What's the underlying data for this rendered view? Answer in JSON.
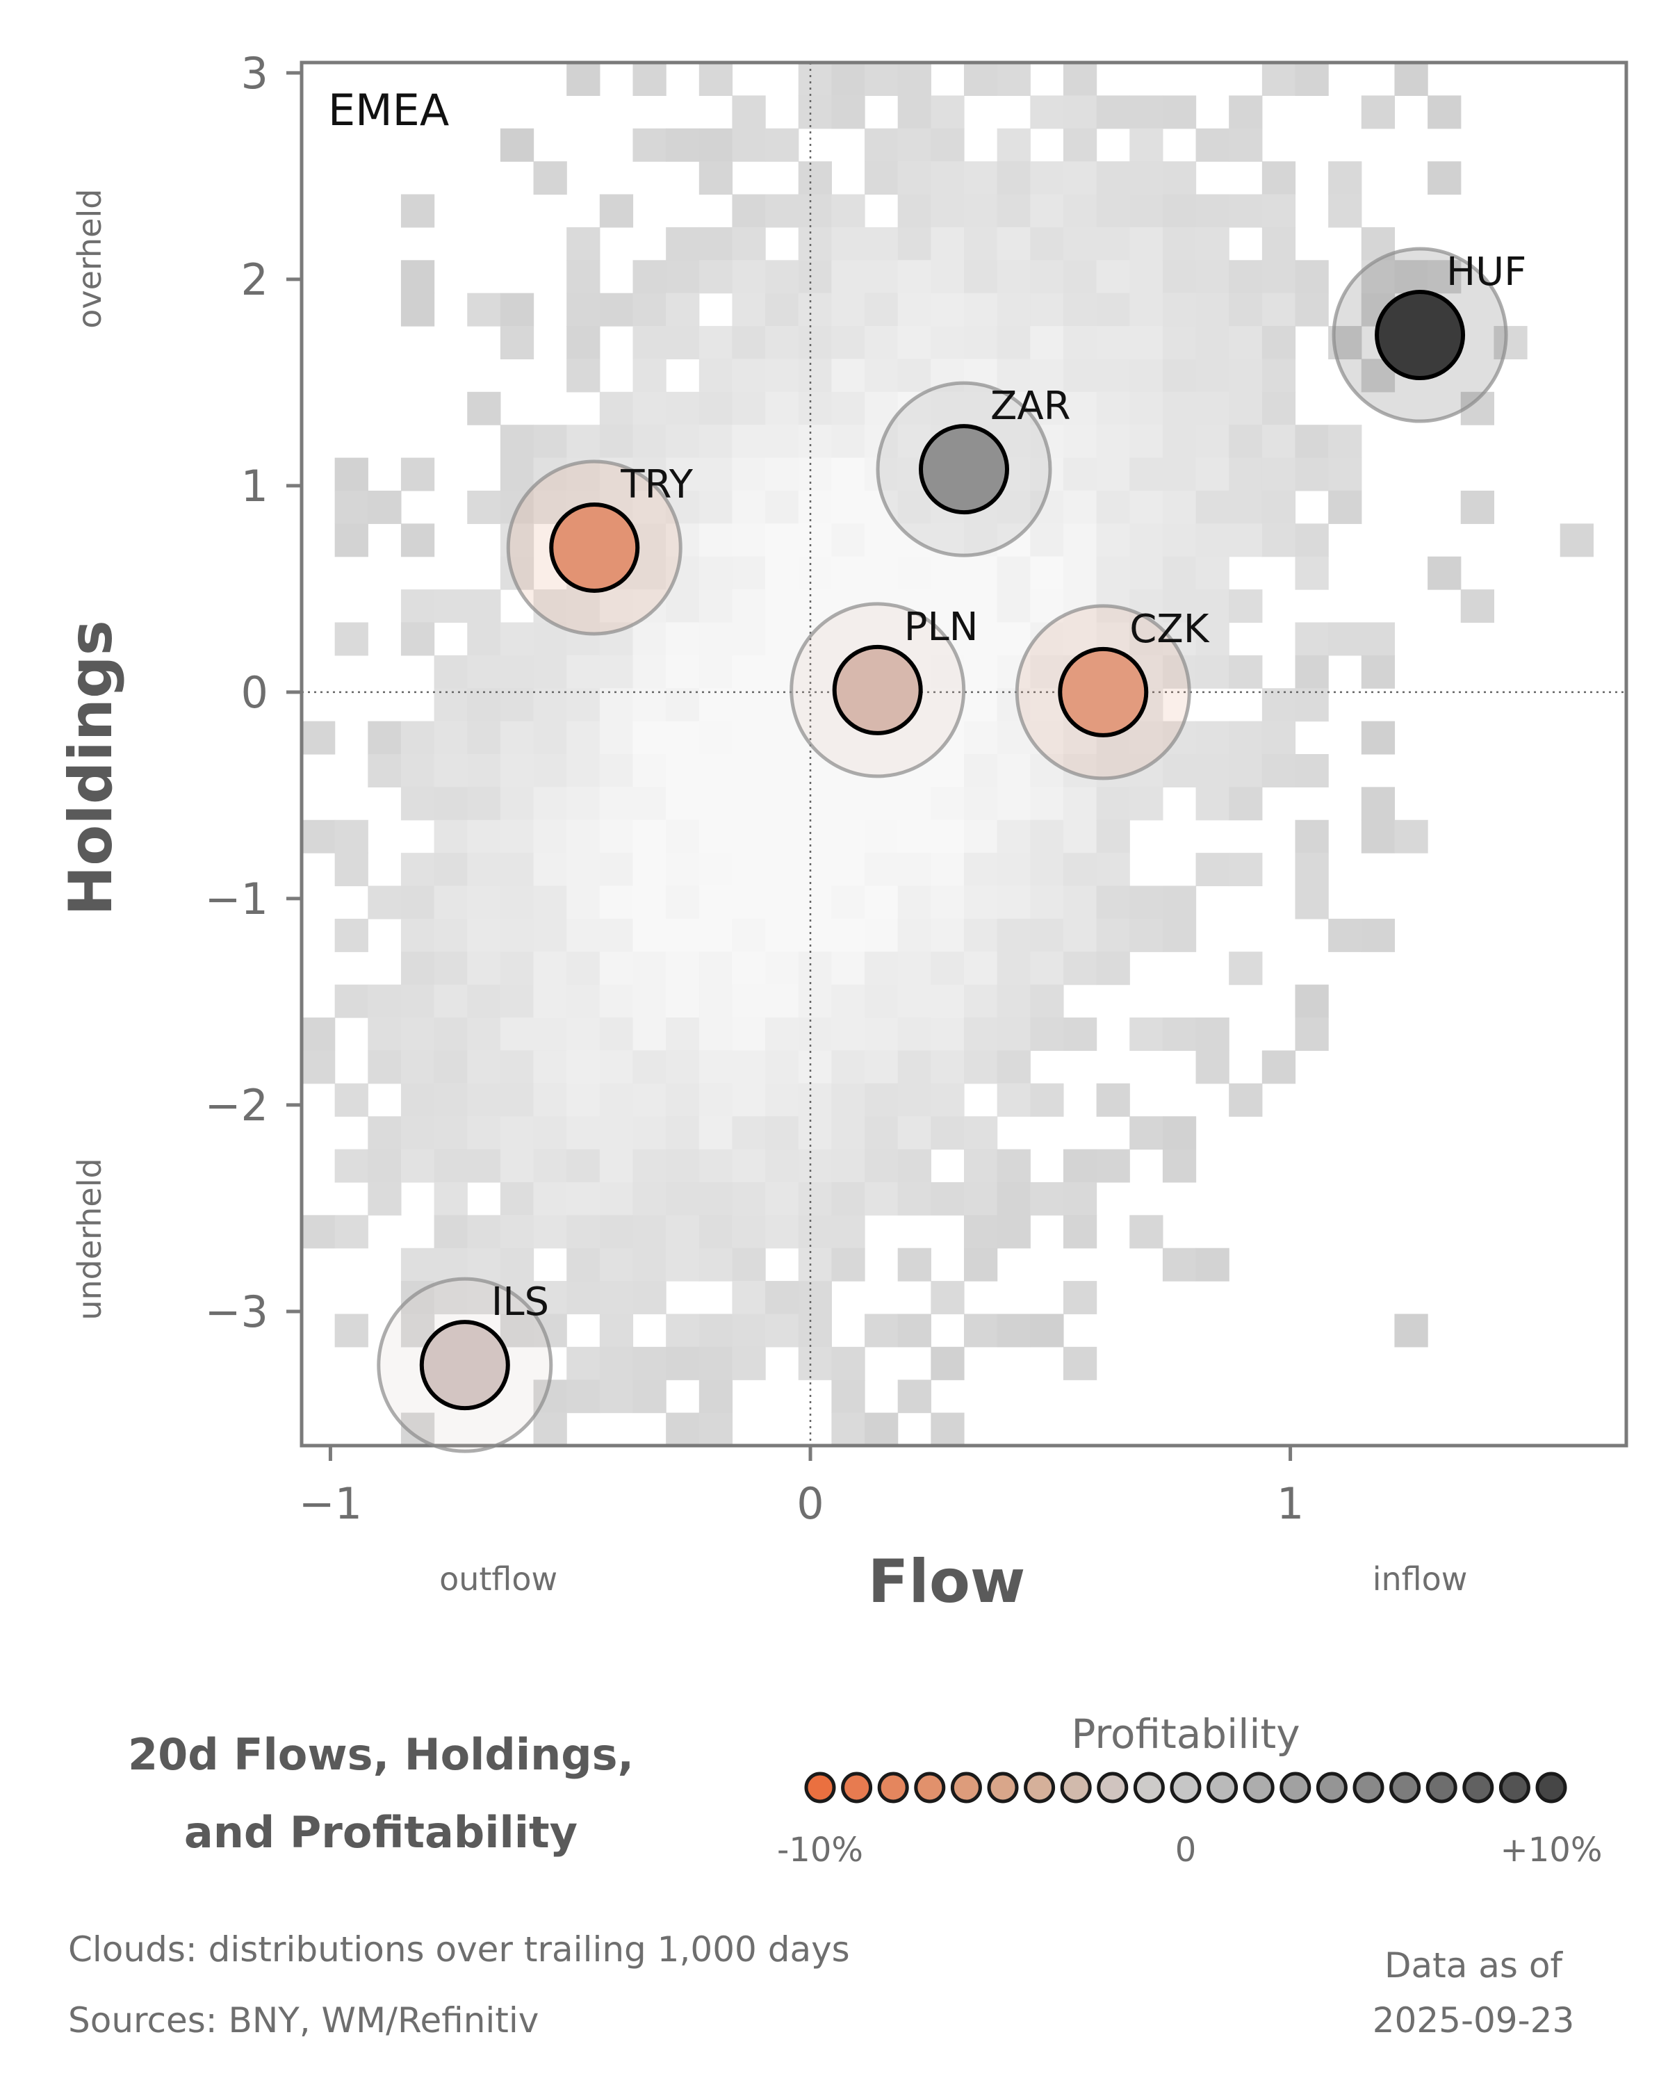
{
  "chart_data": {
    "type": "scatter",
    "region": "EMEA",
    "xlabel": "Flow",
    "ylabel": "Holdings",
    "xlim": [
      -1.06,
      1.7
    ],
    "ylim": [
      -3.65,
      3.05
    ],
    "xticks": [
      {
        "value": -1,
        "label": "−1"
      },
      {
        "value": 0,
        "label": "0"
      },
      {
        "value": 1,
        "label": "1"
      }
    ],
    "yticks": [
      {
        "value": 3,
        "label": "3"
      },
      {
        "value": 2,
        "label": "2"
      },
      {
        "value": 1,
        "label": "1"
      },
      {
        "value": 0,
        "label": "0"
      },
      {
        "value": -1,
        "label": "−1"
      },
      {
        "value": -2,
        "label": "−2"
      },
      {
        "value": -3,
        "label": "−3"
      }
    ],
    "reference_lines": {
      "x": 0,
      "y": 0
    },
    "x_direction_labels": {
      "low": "outflow",
      "high": "inflow"
    },
    "y_direction_labels": {
      "low": "underheld",
      "high": "overheld"
    },
    "points": [
      {
        "label": "HUF",
        "flow": 1.27,
        "holdings": 1.73,
        "profitability": 0.1,
        "color": "#3b3b3b"
      },
      {
        "label": "ZAR",
        "flow": 0.32,
        "holdings": 1.08,
        "profitability": 0.05,
        "color": "#909090"
      },
      {
        "label": "TRY",
        "flow": -0.45,
        "holdings": 0.7,
        "profitability": -0.07,
        "color": "#e29373"
      },
      {
        "label": "PLN",
        "flow": 0.14,
        "holdings": 0.01,
        "profitability": -0.02,
        "color": "#d7b8ad"
      },
      {
        "label": "CZK",
        "flow": 0.61,
        "holdings": 0.0,
        "profitability": -0.06,
        "color": "#e29b7e"
      },
      {
        "label": "ILS",
        "flow": -0.72,
        "holdings": -3.26,
        "profitability": -0.01,
        "color": "#d3c5c2"
      }
    ],
    "background": "2D histogram clouds (grey) of trailing flow/holdings distributions",
    "grid": false,
    "title": "20d Flows, Holdings, and Profitability",
    "title_lines": [
      "20d Flows, Holdings,",
      "and Profitability"
    ],
    "legend": {
      "title": "Profitability",
      "range": [
        -0.1,
        0.1
      ],
      "tick_labels": {
        "min": "-10%",
        "mid": "0",
        "max": "+10%"
      },
      "colors": [
        "#ea7040",
        "#e77b50",
        "#e4865e",
        "#e1916c",
        "#dd9c7b",
        "#d9a68a",
        "#d5b09a",
        "#d1baac",
        "#d0c4bf",
        "#cdcbc9",
        "#c6c6c6",
        "#bababa",
        "#adadad",
        "#a1a1a1",
        "#959595",
        "#898989",
        "#7c7c7c",
        "#6e6e6e",
        "#616161",
        "#535353",
        "#464646"
      ]
    },
    "notes": [
      "Clouds:  distributions over trailing 1,000 days",
      "Sources:  BNY, WM/Refinitiv"
    ],
    "data_as_of_label": "Data as of",
    "data_as_of_date": "2025-09-23"
  }
}
